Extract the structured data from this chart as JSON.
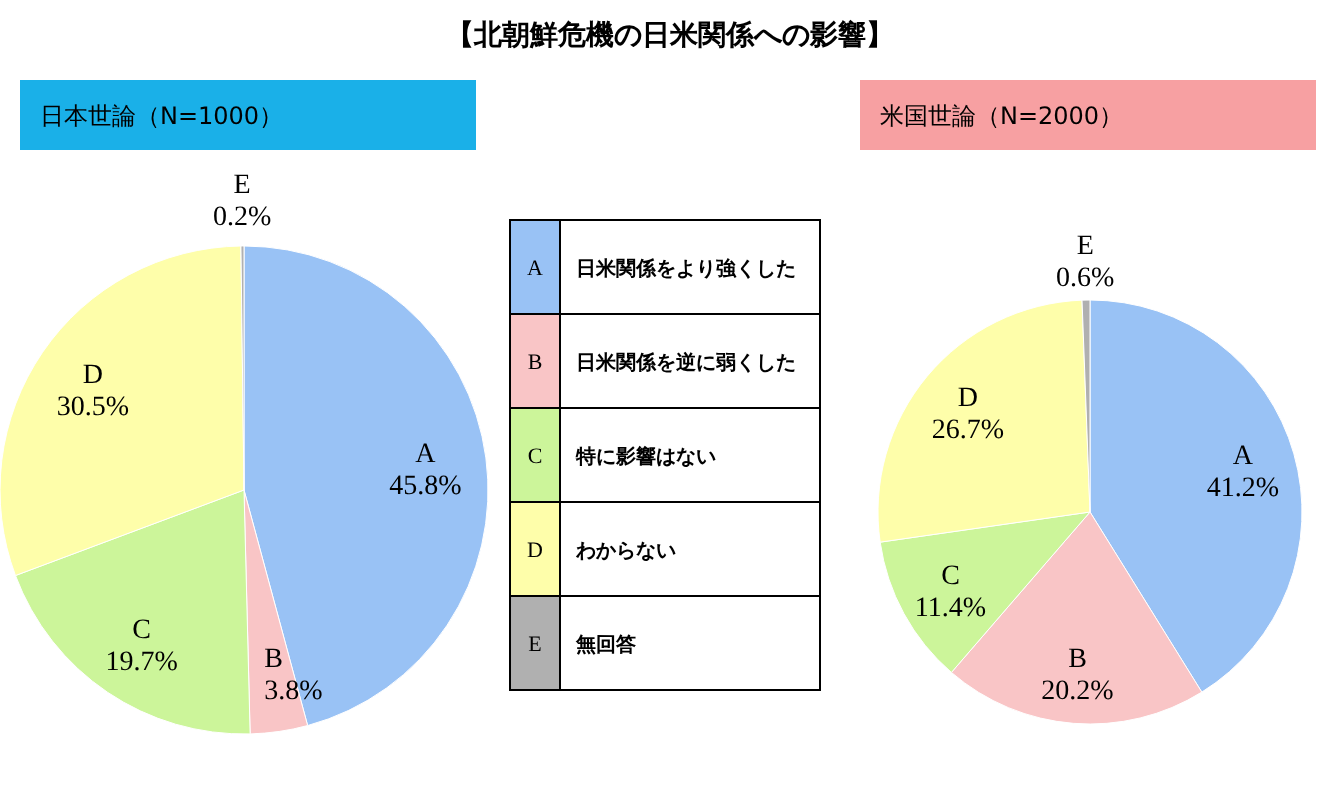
{
  "chart_data": [
    {
      "type": "pie",
      "title": "【北朝鮮危機の日米関係への影響】",
      "subtitle": "日本世論（N=1000）",
      "categories": [
        "A",
        "B",
        "C",
        "D",
        "E"
      ],
      "values": [
        45.8,
        3.8,
        19.7,
        30.5,
        0.2
      ],
      "value_labels": [
        "45.8%",
        "3.8%",
        "19.7%",
        "30.5%",
        "0.2%"
      ],
      "colors": [
        "#99c2f5",
        "#f9c5c6",
        "#ccf59a",
        "#fefeaa",
        "#b0b0b0"
      ]
    },
    {
      "type": "pie",
      "subtitle": "米国世論（N=2000）",
      "categories": [
        "A",
        "B",
        "C",
        "D",
        "E"
      ],
      "values": [
        41.2,
        20.2,
        11.4,
        26.7,
        0.6
      ],
      "value_labels": [
        "41.2%",
        "20.2%",
        "11.4%",
        "26.7%",
        "0.6%"
      ],
      "colors": [
        "#99c2f5",
        "#f9c5c6",
        "#ccf59a",
        "#fefeaa",
        "#b0b0b0"
      ]
    },
    {
      "type": "other",
      "categories": [
        "A",
        "B",
        "C",
        "D",
        "E"
      ],
      "annotations": [
        "日米関係をより強くした",
        "日米関係を逆に弱くした",
        "特に影響はない",
        "わからない",
        "無回答"
      ],
      "colors": [
        "#99c2f5",
        "#f9c5c6",
        "#ccf59a",
        "#fefeaa",
        "#b0b0b0"
      ]
    }
  ]
}
